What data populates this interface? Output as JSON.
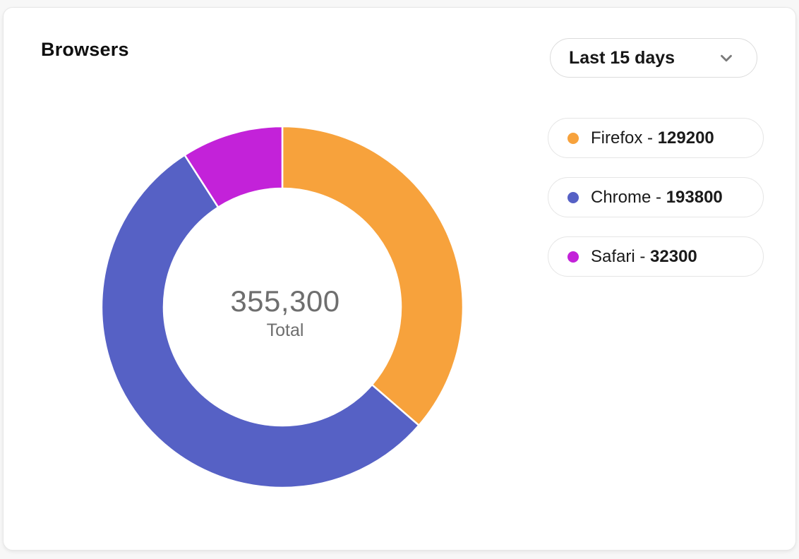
{
  "header": {
    "title": "Browsers",
    "date_range": {
      "value": "Last 15 days",
      "icon": "chevron-down-icon"
    }
  },
  "donut_center": {
    "total_display": "355,300",
    "total_label": "Total"
  },
  "legend": {
    "separator": " - "
  },
  "chart_data": {
    "type": "pie",
    "variant": "donut",
    "title": "Browsers",
    "order": "clockwise-from-top",
    "series": [
      {
        "name": "Firefox",
        "value": 129200,
        "color": "#F7A23C"
      },
      {
        "name": "Chrome",
        "value": 193800,
        "color": "#5661C5"
      },
      {
        "name": "Safari",
        "value": 32300,
        "color": "#C322D9"
      }
    ],
    "total": 355300,
    "total_display": "355,300",
    "center_label": "Total",
    "legend_position": "right",
    "slice_gap_color": "#ffffff"
  }
}
